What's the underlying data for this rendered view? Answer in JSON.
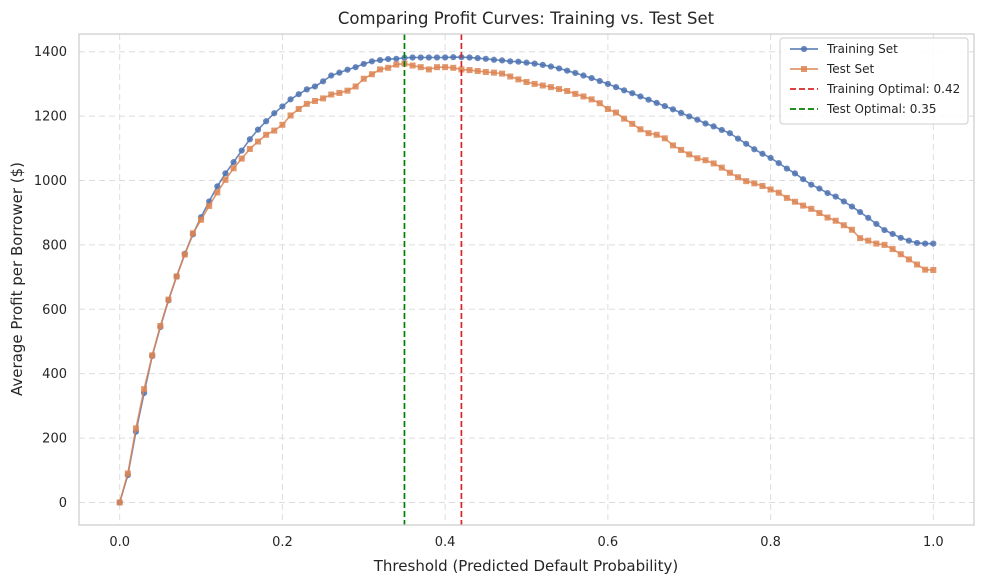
{
  "chart_data": {
    "type": "line",
    "title": "Comparing Profit Curves: Training vs. Test Set",
    "xlabel": "Threshold (Predicted Default Probability)",
    "ylabel": "Average Profit per Borrower ($)",
    "xlim": [
      -0.05,
      1.05
    ],
    "ylim": [
      -70,
      1455
    ],
    "xticks": [
      0.0,
      0.2,
      0.4,
      0.6,
      0.8,
      1.0
    ],
    "xtick_labels": [
      "0.0",
      "0.2",
      "0.4",
      "0.6",
      "0.8",
      "1.0"
    ],
    "yticks": [
      0,
      200,
      400,
      600,
      800,
      1000,
      1200,
      1400
    ],
    "ytick_labels": [
      "0",
      "200",
      "400",
      "600",
      "800",
      "1000",
      "1200",
      "1400"
    ],
    "grid": true,
    "legend_position": "top-right",
    "x": [
      0.0,
      0.01,
      0.02,
      0.03,
      0.04,
      0.05,
      0.06,
      0.07,
      0.08,
      0.09,
      0.1,
      0.11,
      0.12,
      0.13,
      0.14,
      0.15,
      0.16,
      0.17,
      0.18,
      0.19,
      0.2,
      0.21,
      0.22,
      0.23,
      0.24,
      0.25,
      0.26,
      0.27,
      0.28,
      0.29,
      0.3,
      0.31,
      0.32,
      0.33,
      0.34,
      0.35,
      0.36,
      0.37,
      0.38,
      0.39,
      0.4,
      0.41,
      0.42,
      0.43,
      0.44,
      0.45,
      0.46,
      0.47,
      0.48,
      0.49,
      0.5,
      0.51,
      0.52,
      0.53,
      0.54,
      0.55,
      0.56,
      0.57,
      0.58,
      0.59,
      0.6,
      0.61,
      0.62,
      0.63,
      0.64,
      0.65,
      0.66,
      0.67,
      0.68,
      0.69,
      0.7,
      0.71,
      0.72,
      0.73,
      0.74,
      0.75,
      0.76,
      0.77,
      0.78,
      0.79,
      0.8,
      0.81,
      0.82,
      0.83,
      0.84,
      0.85,
      0.86,
      0.87,
      0.88,
      0.89,
      0.9,
      0.91,
      0.92,
      0.93,
      0.94,
      0.95,
      0.96,
      0.97,
      0.98,
      0.99,
      1.0
    ],
    "series": [
      {
        "name": "Training Set",
        "color": "#4c72b0",
        "marker": "circle",
        "values": [
          0,
          85,
          220,
          340,
          455,
          545,
          628,
          702,
          772,
          833,
          886,
          935,
          982,
          1022,
          1057,
          1093,
          1128,
          1158,
          1184,
          1209,
          1230,
          1252,
          1268,
          1283,
          1292,
          1308,
          1326,
          1335,
          1344,
          1352,
          1362,
          1370,
          1374,
          1377,
          1378,
          1381,
          1382,
          1382,
          1382,
          1382,
          1382,
          1383,
          1383,
          1382,
          1380,
          1378,
          1375,
          1373,
          1370,
          1369,
          1366,
          1363,
          1359,
          1354,
          1348,
          1341,
          1334,
          1326,
          1318,
          1309,
          1300,
          1290,
          1280,
          1271,
          1261,
          1251,
          1241,
          1231,
          1221,
          1210,
          1199,
          1189,
          1177,
          1168,
          1157,
          1147,
          1130,
          1114,
          1097,
          1083,
          1070,
          1054,
          1037,
          1022,
          1004,
          987,
          975,
          961,
          950,
          935,
          919,
          902,
          884,
          865,
          846,
          834,
          822,
          813,
          806,
          804,
          804
        ]
      },
      {
        "name": "Test Set",
        "color": "#dd8452",
        "marker": "square",
        "values": [
          0,
          90,
          230,
          352,
          457,
          548,
          630,
          702,
          770,
          836,
          878,
          921,
          963,
          1002,
          1038,
          1068,
          1098,
          1121,
          1142,
          1155,
          1173,
          1202,
          1222,
          1238,
          1247,
          1255,
          1267,
          1272,
          1279,
          1292,
          1316,
          1330,
          1345,
          1350,
          1360,
          1363,
          1357,
          1352,
          1345,
          1352,
          1352,
          1350,
          1345,
          1343,
          1340,
          1337,
          1335,
          1332,
          1323,
          1314,
          1306,
          1300,
          1295,
          1290,
          1284,
          1278,
          1269,
          1261,
          1252,
          1240,
          1222,
          1211,
          1192,
          1176,
          1159,
          1147,
          1142,
          1131,
          1109,
          1095,
          1081,
          1069,
          1063,
          1053,
          1040,
          1024,
          1010,
          998,
          991,
          983,
          972,
          962,
          946,
          934,
          922,
          912,
          899,
          885,
          875,
          861,
          847,
          821,
          813,
          804,
          800,
          787,
          771,
          755,
          739,
          723,
          722
        ]
      }
    ],
    "reference_lines": [
      {
        "name": "Training Optimal: 0.42",
        "x": 0.42,
        "color": "#d62728",
        "style": "dashed"
      },
      {
        "name": "Test Optimal: 0.35",
        "x": 0.35,
        "color": "#008000",
        "style": "dashed"
      }
    ]
  }
}
